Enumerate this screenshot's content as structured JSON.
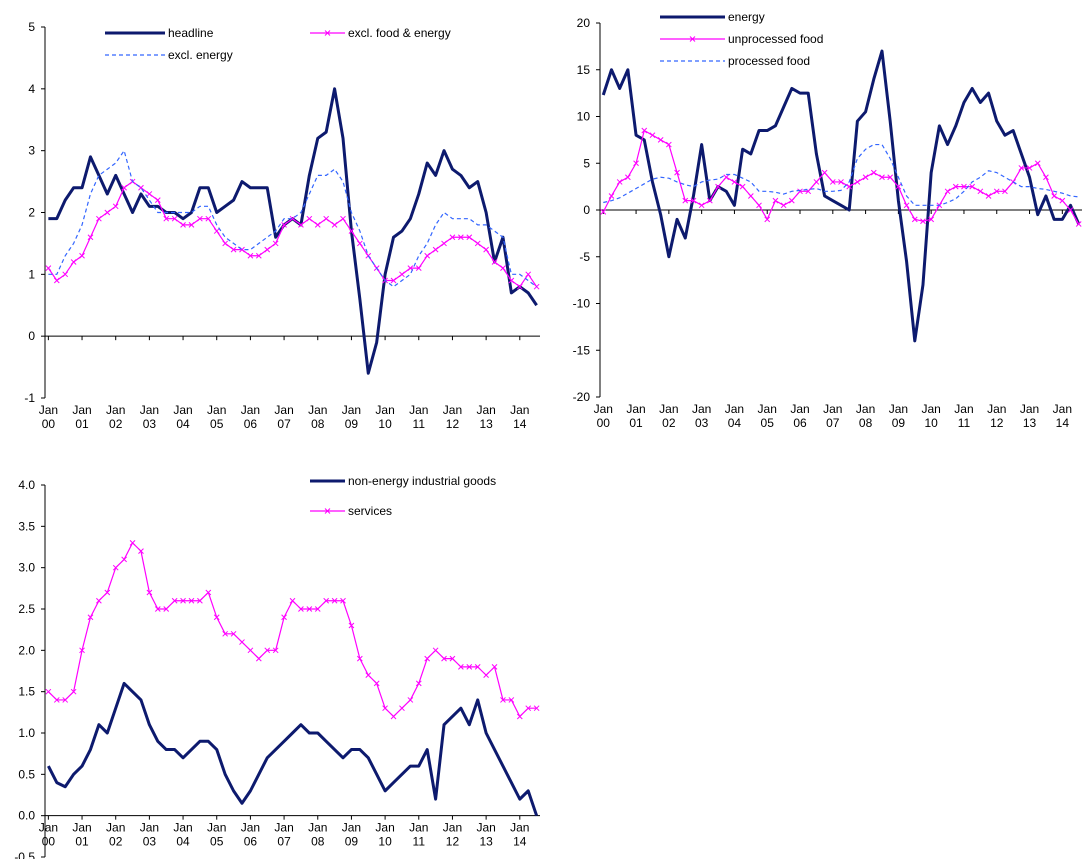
{
  "chart_data": [
    {
      "type": "line",
      "x": [
        2000,
        2000.25,
        2000.5,
        2000.75,
        2001,
        2001.25,
        2001.5,
        2001.75,
        2002,
        2002.25,
        2002.5,
        2002.75,
        2003,
        2003.25,
        2003.5,
        2003.75,
        2004,
        2004.25,
        2004.5,
        2004.75,
        2005,
        2005.25,
        2005.5,
        2005.75,
        2006,
        2006.25,
        2006.5,
        2006.75,
        2007,
        2007.25,
        2007.5,
        2007.75,
        2008,
        2008.25,
        2008.5,
        2008.75,
        2009,
        2009.25,
        2009.5,
        2009.75,
        2010,
        2010.25,
        2010.5,
        2010.75,
        2011,
        2011.25,
        2011.5,
        2011.75,
        2012,
        2012.25,
        2012.5,
        2012.75,
        2013,
        2013.25,
        2013.5,
        2013.75,
        2014,
        2014.25,
        2014.5
      ],
      "series": [
        {
          "name": "headline",
          "color": "#0d1a6e",
          "dash": "solid",
          "width": 3,
          "values": [
            1.9,
            1.9,
            2.2,
            2.4,
            2.4,
            2.9,
            2.6,
            2.3,
            2.6,
            2.3,
            2.0,
            2.3,
            2.1,
            2.1,
            2.0,
            2.0,
            1.9,
            2.0,
            2.4,
            2.4,
            2.0,
            2.1,
            2.2,
            2.5,
            2.4,
            2.4,
            2.4,
            1.6,
            1.8,
            1.9,
            1.8,
            2.6,
            3.2,
            3.3,
            4.0,
            3.2,
            1.7,
            0.6,
            -0.6,
            -0.1,
            1.0,
            1.6,
            1.7,
            1.9,
            2.3,
            2.8,
            2.6,
            3.0,
            2.7,
            2.6,
            2.4,
            2.5,
            2.0,
            1.2,
            1.6,
            0.7,
            0.8,
            0.7,
            0.5
          ]
        },
        {
          "name": "excl. food & energy",
          "color": "#ff00ff",
          "dash": "solid",
          "width": 1.2,
          "marker": "x",
          "values": [
            1.1,
            0.9,
            1.0,
            1.2,
            1.3,
            1.6,
            1.9,
            2.0,
            2.1,
            2.4,
            2.5,
            2.4,
            2.3,
            2.2,
            1.9,
            1.9,
            1.8,
            1.8,
            1.9,
            1.9,
            1.7,
            1.5,
            1.4,
            1.4,
            1.3,
            1.3,
            1.4,
            1.5,
            1.8,
            1.9,
            1.8,
            1.9,
            1.8,
            1.9,
            1.8,
            1.9,
            1.7,
            1.5,
            1.3,
            1.1,
            0.9,
            0.9,
            1.0,
            1.1,
            1.1,
            1.3,
            1.4,
            1.5,
            1.6,
            1.6,
            1.6,
            1.5,
            1.4,
            1.2,
            1.1,
            0.9,
            0.8,
            1.0,
            0.8
          ]
        },
        {
          "name": "excl. energy",
          "color": "#3366ff",
          "dash": "dashed",
          "width": 1.2,
          "values": [
            1.0,
            1.0,
            1.3,
            1.5,
            1.8,
            2.3,
            2.6,
            2.7,
            2.8,
            3.0,
            2.5,
            2.4,
            2.2,
            2.0,
            2.0,
            2.0,
            2.0,
            2.0,
            2.1,
            2.1,
            1.8,
            1.6,
            1.5,
            1.4,
            1.4,
            1.5,
            1.6,
            1.7,
            1.9,
            1.9,
            2.0,
            2.3,
            2.6,
            2.6,
            2.7,
            2.5,
            2.0,
            1.7,
            1.3,
            1.1,
            0.9,
            0.8,
            0.9,
            1.0,
            1.3,
            1.5,
            1.8,
            2.0,
            1.9,
            1.9,
            1.9,
            1.8,
            1.8,
            1.7,
            1.6,
            1.0,
            1.0,
            0.9,
            0.8
          ]
        }
      ],
      "xlim": [
        1999.9,
        2014.6
      ],
      "xticks": [
        {
          "value": 2000,
          "label": "Jan 00"
        },
        {
          "value": 2001,
          "label": "Jan 01"
        },
        {
          "value": 2002,
          "label": "Jan 02"
        },
        {
          "value": 2003,
          "label": "Jan 03"
        },
        {
          "value": 2004,
          "label": "Jan 04"
        },
        {
          "value": 2005,
          "label": "Jan 05"
        },
        {
          "value": 2006,
          "label": "Jan 06"
        },
        {
          "value": 2007,
          "label": "Jan 07"
        },
        {
          "value": 2008,
          "label": "Jan 08"
        },
        {
          "value": 2009,
          "label": "Jan 09"
        },
        {
          "value": 2010,
          "label": "Jan 10"
        },
        {
          "value": 2011,
          "label": "Jan 11"
        },
        {
          "value": 2012,
          "label": "Jan 12"
        },
        {
          "value": 2013,
          "label": "Jan 13"
        },
        {
          "value": 2014,
          "label": "Jan 14"
        }
      ],
      "ylim": [
        -1,
        5
      ],
      "yticks": [
        -1,
        0,
        1,
        2,
        3,
        4,
        5
      ],
      "grid": false
    },
    {
      "type": "line",
      "x": [
        2000,
        2000.25,
        2000.5,
        2000.75,
        2001,
        2001.25,
        2001.5,
        2001.75,
        2002,
        2002.25,
        2002.5,
        2002.75,
        2003,
        2003.25,
        2003.5,
        2003.75,
        2004,
        2004.25,
        2004.5,
        2004.75,
        2005,
        2005.25,
        2005.5,
        2005.75,
        2006,
        2006.25,
        2006.5,
        2006.75,
        2007,
        2007.25,
        2007.5,
        2007.75,
        2008,
        2008.25,
        2008.5,
        2008.75,
        2009,
        2009.25,
        2009.5,
        2009.75,
        2010,
        2010.25,
        2010.5,
        2010.75,
        2011,
        2011.25,
        2011.5,
        2011.75,
        2012,
        2012.25,
        2012.5,
        2012.75,
        2013,
        2013.25,
        2013.5,
        2013.75,
        2014,
        2014.25,
        2014.5
      ],
      "series": [
        {
          "name": "energy",
          "color": "#0d1a6e",
          "dash": "solid",
          "width": 3,
          "values": [
            12.3,
            15.0,
            13.0,
            15.0,
            8.0,
            7.5,
            3.0,
            -0.5,
            -5.0,
            -1.0,
            -3.0,
            1.5,
            7.0,
            1.0,
            2.5,
            2.0,
            0.5,
            6.5,
            6.0,
            8.5,
            8.5,
            9.0,
            11.0,
            13.0,
            12.5,
            12.5,
            6.0,
            1.5,
            1.0,
            0.5,
            0.0,
            9.5,
            10.5,
            14.0,
            17.0,
            9.5,
            1.0,
            -5.5,
            -14.0,
            -8.0,
            4.0,
            9.0,
            7.0,
            9.0,
            11.5,
            13.0,
            11.5,
            12.5,
            9.5,
            8.0,
            8.5,
            6.0,
            3.5,
            -0.5,
            1.5,
            -1.0,
            -1.0,
            0.5,
            -1.5
          ]
        },
        {
          "name": "unprocessed food",
          "color": "#ff00ff",
          "dash": "solid",
          "width": 1.2,
          "marker": "x",
          "values": [
            -0.2,
            1.5,
            3.0,
            3.5,
            5.0,
            8.5,
            8.0,
            7.5,
            7.0,
            4.0,
            1.0,
            1.0,
            0.5,
            1.0,
            2.5,
            3.5,
            3.0,
            2.5,
            1.5,
            0.5,
            -1.0,
            1.0,
            0.5,
            1.0,
            2.0,
            2.0,
            3.0,
            4.0,
            3.0,
            3.0,
            2.5,
            3.0,
            3.5,
            4.0,
            3.5,
            3.5,
            2.5,
            0.5,
            -1.0,
            -1.2,
            -1.0,
            0.5,
            2.0,
            2.5,
            2.5,
            2.5,
            2.0,
            1.5,
            2.0,
            2.0,
            3.0,
            4.5,
            4.5,
            5.0,
            3.5,
            1.5,
            1.0,
            0.0,
            -1.5
          ]
        },
        {
          "name": "processed food",
          "color": "#3366ff",
          "dash": "dashed",
          "width": 1.2,
          "values": [
            0.8,
            1.0,
            1.3,
            1.8,
            2.3,
            2.8,
            3.3,
            3.5,
            3.4,
            3.0,
            2.7,
            2.5,
            3.0,
            3.2,
            3.3,
            3.8,
            3.8,
            3.4,
            3.0,
            2.0,
            2.0,
            1.9,
            1.7,
            2.0,
            2.1,
            2.2,
            2.3,
            2.0,
            2.0,
            2.1,
            3.0,
            5.5,
            6.5,
            7.0,
            7.0,
            5.5,
            3.5,
            1.5,
            0.5,
            0.5,
            0.5,
            0.5,
            0.8,
            1.2,
            2.0,
            3.0,
            3.5,
            4.2,
            4.0,
            3.5,
            3.0,
            2.5,
            2.5,
            2.3,
            2.2,
            2.0,
            1.8,
            1.5,
            1.4
          ]
        }
      ],
      "xlim": [
        1999.9,
        2014.6
      ],
      "xticks": [
        {
          "value": 2000,
          "label": "Jan 00"
        },
        {
          "value": 2001,
          "label": "Jan 01"
        },
        {
          "value": 2002,
          "label": "Jan 02"
        },
        {
          "value": 2003,
          "label": "Jan 03"
        },
        {
          "value": 2004,
          "label": "Jan 04"
        },
        {
          "value": 2005,
          "label": "Jan 05"
        },
        {
          "value": 2006,
          "label": "Jan 06"
        },
        {
          "value": 2007,
          "label": "Jan 07"
        },
        {
          "value": 2008,
          "label": "Jan 08"
        },
        {
          "value": 2009,
          "label": "Jan 09"
        },
        {
          "value": 2010,
          "label": "Jan 10"
        },
        {
          "value": 2011,
          "label": "Jan 11"
        },
        {
          "value": 2012,
          "label": "Jan 12"
        },
        {
          "value": 2013,
          "label": "Jan 13"
        },
        {
          "value": 2014,
          "label": "Jan 14"
        }
      ],
      "ylim": [
        -20,
        20
      ],
      "yticks": [
        -20,
        -15,
        -10,
        -5,
        0,
        5,
        10,
        15,
        20
      ],
      "grid": false
    },
    {
      "type": "line",
      "x": [
        2000,
        2000.25,
        2000.5,
        2000.75,
        2001,
        2001.25,
        2001.5,
        2001.75,
        2002,
        2002.25,
        2002.5,
        2002.75,
        2003,
        2003.25,
        2003.5,
        2003.75,
        2004,
        2004.25,
        2004.5,
        2004.75,
        2005,
        2005.25,
        2005.5,
        2005.75,
        2006,
        2006.25,
        2006.5,
        2006.75,
        2007,
        2007.25,
        2007.5,
        2007.75,
        2008,
        2008.25,
        2008.5,
        2008.75,
        2009,
        2009.25,
        2009.5,
        2009.75,
        2010,
        2010.25,
        2010.5,
        2010.75,
        2011,
        2011.25,
        2011.5,
        2011.75,
        2012,
        2012.25,
        2012.5,
        2012.75,
        2013,
        2013.25,
        2013.5,
        2013.75,
        2014,
        2014.25,
        2014.5
      ],
      "series": [
        {
          "name": "non-energy industrial goods",
          "color": "#0d1a6e",
          "dash": "solid",
          "width": 3,
          "values": [
            0.6,
            0.4,
            0.35,
            0.5,
            0.6,
            0.8,
            1.1,
            1.0,
            1.3,
            1.6,
            1.5,
            1.4,
            1.1,
            0.9,
            0.8,
            0.8,
            0.7,
            0.8,
            0.9,
            0.9,
            0.8,
            0.5,
            0.3,
            0.15,
            0.3,
            0.5,
            0.7,
            0.8,
            0.9,
            1.0,
            1.1,
            1.0,
            1.0,
            0.9,
            0.8,
            0.7,
            0.8,
            0.8,
            0.7,
            0.5,
            0.3,
            0.4,
            0.5,
            0.6,
            0.6,
            0.8,
            0.2,
            1.1,
            1.2,
            1.3,
            1.1,
            1.4,
            1.0,
            0.8,
            0.6,
            0.4,
            0.2,
            0.3,
            0.0
          ]
        },
        {
          "name": "services",
          "color": "#ff00ff",
          "dash": "solid",
          "width": 1.2,
          "marker": "x",
          "values": [
            1.5,
            1.4,
            1.4,
            1.5,
            2.0,
            2.4,
            2.6,
            2.7,
            3.0,
            3.1,
            3.3,
            3.2,
            2.7,
            2.5,
            2.5,
            2.6,
            2.6,
            2.6,
            2.6,
            2.7,
            2.4,
            2.2,
            2.2,
            2.1,
            2.0,
            1.9,
            2.0,
            2.0,
            2.4,
            2.6,
            2.5,
            2.5,
            2.5,
            2.6,
            2.6,
            2.6,
            2.3,
            1.9,
            1.7,
            1.6,
            1.3,
            1.2,
            1.3,
            1.4,
            1.6,
            1.9,
            2.0,
            1.9,
            1.9,
            1.8,
            1.8,
            1.8,
            1.7,
            1.8,
            1.4,
            1.4,
            1.2,
            1.3,
            1.3
          ]
        }
      ],
      "xlim": [
        1999.9,
        2014.6
      ],
      "xticks": [
        {
          "value": 2000,
          "label": "Jan 00"
        },
        {
          "value": 2001,
          "label": "Jan 01"
        },
        {
          "value": 2002,
          "label": "Jan 02"
        },
        {
          "value": 2003,
          "label": "Jan 03"
        },
        {
          "value": 2004,
          "label": "Jan 04"
        },
        {
          "value": 2005,
          "label": "Jan 05"
        },
        {
          "value": 2006,
          "label": "Jan 06"
        },
        {
          "value": 2007,
          "label": "Jan 07"
        },
        {
          "value": 2008,
          "label": "Jan 08"
        },
        {
          "value": 2009,
          "label": "Jan 09"
        },
        {
          "value": 2010,
          "label": "Jan 10"
        },
        {
          "value": 2011,
          "label": "Jan 11"
        },
        {
          "value": 2012,
          "label": "Jan 12"
        },
        {
          "value": 2013,
          "label": "Jan 13"
        },
        {
          "value": 2014,
          "label": "Jan 14"
        }
      ],
      "ylim": [
        -0.5,
        4
      ],
      "yticks": [
        -0.5,
        {
          "value": 0,
          "label": "0.0"
        },
        0.5,
        {
          "value": 1,
          "label": "1.0"
        },
        1.5,
        {
          "value": 2,
          "label": "2.0"
        },
        2.5,
        {
          "value": 3,
          "label": "3.0"
        },
        3.5,
        {
          "value": 4,
          "label": "4.0"
        }
      ],
      "grid": false
    }
  ]
}
